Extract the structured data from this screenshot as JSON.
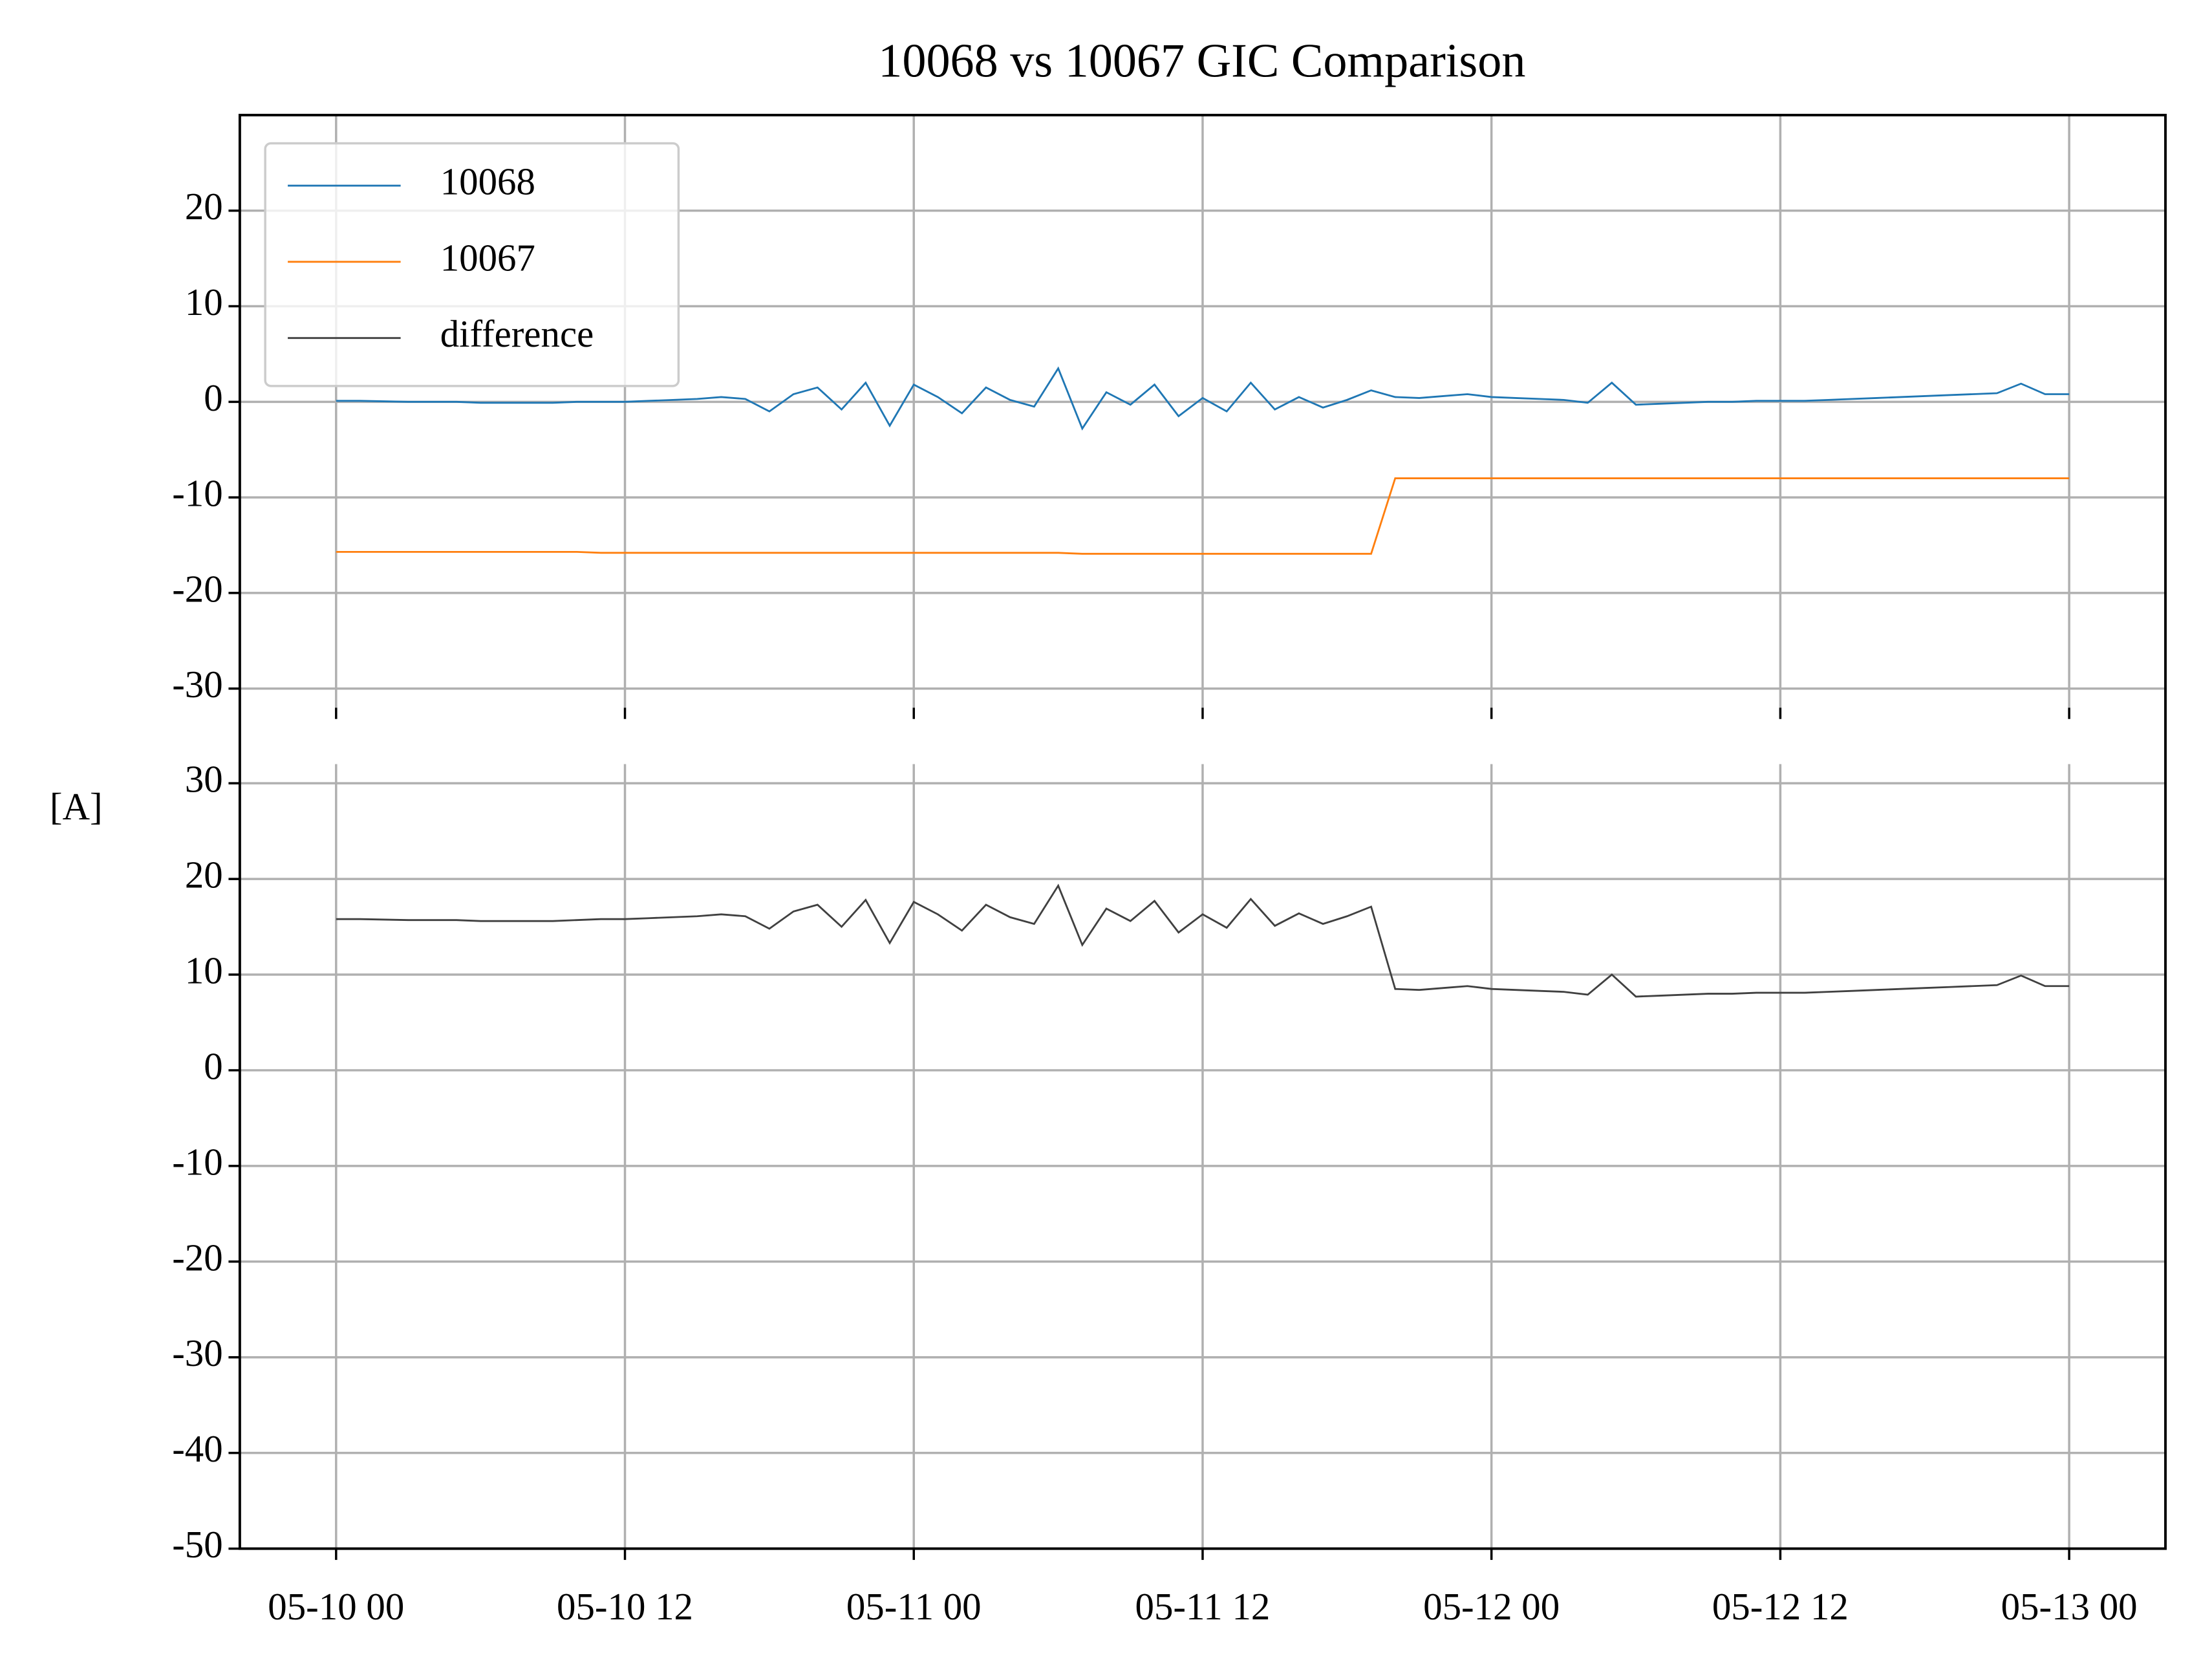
{
  "chart_data": [
    {
      "type": "line",
      "title": "10068 vs 10067 GIC Comparison",
      "ylabel": "[A]",
      "grid": true,
      "legend": "upper left",
      "x": [
        "05-10 00",
        "05-10 01",
        "05-10 02",
        "05-10 03",
        "05-10 04",
        "05-10 05",
        "05-10 06",
        "05-10 07",
        "05-10 08",
        "05-10 09",
        "05-10 10",
        "05-10 11",
        "05-10 12",
        "05-10 13",
        "05-10 14",
        "05-10 15",
        "05-10 16",
        "05-10 17",
        "05-10 18",
        "05-10 19",
        "05-10 20",
        "05-10 21",
        "05-10 22",
        "05-10 23",
        "05-11 00",
        "05-11 01",
        "05-11 02",
        "05-11 03",
        "05-11 04",
        "05-11 05",
        "05-11 06",
        "05-11 07",
        "05-11 08",
        "05-11 09",
        "05-11 10",
        "05-11 11",
        "05-11 12",
        "05-11 13",
        "05-11 14",
        "05-11 15",
        "05-11 16",
        "05-11 17",
        "05-11 18",
        "05-11 19",
        "05-11 20",
        "05-11 21",
        "05-11 22",
        "05-11 23",
        "05-12 00",
        "05-12 01",
        "05-12 02",
        "05-12 03",
        "05-12 04",
        "05-12 05",
        "05-12 06",
        "05-12 07",
        "05-12 08",
        "05-12 09",
        "05-12 10",
        "05-12 11",
        "05-12 12",
        "05-12 13",
        "05-12 14",
        "05-12 15",
        "05-12 16",
        "05-12 17",
        "05-12 18",
        "05-12 19",
        "05-12 20",
        "05-12 21",
        "05-12 22",
        "05-12 23",
        "05-13 00"
      ],
      "xlim": [
        "05-09 20",
        "05-13 04"
      ],
      "xticks": [
        "05-10 00",
        "05-10 12",
        "05-11 00",
        "05-11 12",
        "05-12 00",
        "05-12 12",
        "05-13 00"
      ],
      "ylim": [
        -32,
        30
      ],
      "yticks": [
        -30,
        -20,
        -10,
        0,
        10,
        20
      ],
      "series": [
        {
          "name": "10068",
          "color": "#1f77b4",
          "values": [
            0.1,
            0.1,
            0.05,
            0,
            0,
            0,
            -0.1,
            -0.1,
            -0.1,
            -0.1,
            0,
            0,
            0,
            0.1,
            0.2,
            0.3,
            0.5,
            0.3,
            -1.0,
            0.8,
            1.5,
            -0.8,
            2.0,
            -2.5,
            1.8,
            0.5,
            -1.2,
            1.5,
            0.2,
            -0.5,
            3.5,
            -2.8,
            1.0,
            -0.3,
            1.8,
            -1.5,
            0.4,
            -1.0,
            2.0,
            -0.8,
            0.5,
            -0.6,
            0.2,
            1.2,
            0.5,
            0.4,
            0.6,
            0.8,
            0.5,
            0.4,
            0.3,
            0.2,
            -0.1,
            2.0,
            -0.3,
            -0.2,
            -0.1,
            0,
            0,
            0.1,
            0.1,
            0.1,
            0.2,
            0.3,
            0.4,
            0.5,
            0.6,
            0.7,
            0.8,
            0.9,
            1.9,
            0.8,
            0.8
          ]
        },
        {
          "name": "10067",
          "color": "#ff7f0e",
          "values": [
            -15.7,
            -15.7,
            -15.7,
            -15.7,
            -15.7,
            -15.7,
            -15.7,
            -15.7,
            -15.7,
            -15.7,
            -15.7,
            -15.8,
            -15.8,
            -15.8,
            -15.8,
            -15.8,
            -15.8,
            -15.8,
            -15.8,
            -15.8,
            -15.8,
            -15.8,
            -15.8,
            -15.8,
            -15.8,
            -15.8,
            -15.8,
            -15.8,
            -15.8,
            -15.8,
            -15.8,
            -15.9,
            -15.9,
            -15.9,
            -15.9,
            -15.9,
            -15.9,
            -15.9,
            -15.9,
            -15.9,
            -15.9,
            -15.9,
            -15.9,
            -15.9,
            -8,
            -8,
            -8,
            -8,
            -8,
            -8,
            -8,
            -8,
            -8,
            -8,
            -8,
            -8,
            -8,
            -8,
            -8,
            -8,
            -8,
            -8,
            -8,
            -8,
            -8,
            -8,
            -8,
            -8,
            -8,
            -8,
            -8,
            -8,
            -8
          ]
        }
      ]
    },
    {
      "type": "line",
      "grid": true,
      "x": [
        "05-10 00",
        "05-10 01",
        "05-10 02",
        "05-10 03",
        "05-10 04",
        "05-10 05",
        "05-10 06",
        "05-10 07",
        "05-10 08",
        "05-10 09",
        "05-10 10",
        "05-10 11",
        "05-10 12",
        "05-10 13",
        "05-10 14",
        "05-10 15",
        "05-10 16",
        "05-10 17",
        "05-10 18",
        "05-10 19",
        "05-10 20",
        "05-10 21",
        "05-10 22",
        "05-10 23",
        "05-11 00",
        "05-11 01",
        "05-11 02",
        "05-11 03",
        "05-11 04",
        "05-11 05",
        "05-11 06",
        "05-11 07",
        "05-11 08",
        "05-11 09",
        "05-11 10",
        "05-11 11",
        "05-11 12",
        "05-11 13",
        "05-11 14",
        "05-11 15",
        "05-11 16",
        "05-11 17",
        "05-11 18",
        "05-11 19",
        "05-11 20",
        "05-11 21",
        "05-11 22",
        "05-11 23",
        "05-12 00",
        "05-12 01",
        "05-12 02",
        "05-12 03",
        "05-12 04",
        "05-12 05",
        "05-12 06",
        "05-12 07",
        "05-12 08",
        "05-12 09",
        "05-12 10",
        "05-12 11",
        "05-12 12",
        "05-12 13",
        "05-12 14",
        "05-12 15",
        "05-12 16",
        "05-12 17",
        "05-12 18",
        "05-12 19",
        "05-12 20",
        "05-12 21",
        "05-12 22",
        "05-12 23",
        "05-13 00"
      ],
      "xlim": [
        "05-09 20",
        "05-13 04"
      ],
      "xticks": [
        "05-10 00",
        "05-10 12",
        "05-11 00",
        "05-11 12",
        "05-12 00",
        "05-12 12",
        "05-13 00"
      ],
      "ylim": [
        -50,
        32
      ],
      "yticks": [
        -50,
        -40,
        -30,
        -20,
        -10,
        0,
        10,
        20,
        30
      ],
      "series": [
        {
          "name": "difference",
          "color": "#404040",
          "values": [
            15.8,
            15.8,
            15.75,
            15.7,
            15.7,
            15.7,
            15.6,
            15.6,
            15.6,
            15.6,
            15.7,
            15.8,
            15.8,
            15.9,
            16.0,
            16.1,
            16.3,
            16.1,
            14.8,
            16.6,
            17.3,
            15.0,
            17.8,
            13.3,
            17.6,
            16.3,
            14.6,
            17.3,
            16.0,
            15.3,
            19.3,
            13.1,
            16.9,
            15.6,
            17.7,
            14.4,
            16.3,
            14.9,
            17.9,
            15.1,
            16.4,
            15.3,
            16.1,
            17.1,
            8.5,
            8.4,
            8.6,
            8.8,
            8.5,
            8.4,
            8.3,
            8.2,
            7.9,
            10.0,
            7.7,
            7.8,
            7.9,
            8,
            8,
            8.1,
            8.1,
            8.1,
            8.2,
            8.3,
            8.4,
            8.5,
            8.6,
            8.7,
            8.8,
            8.9,
            9.9,
            8.8,
            8.8
          ]
        }
      ]
    }
  ]
}
